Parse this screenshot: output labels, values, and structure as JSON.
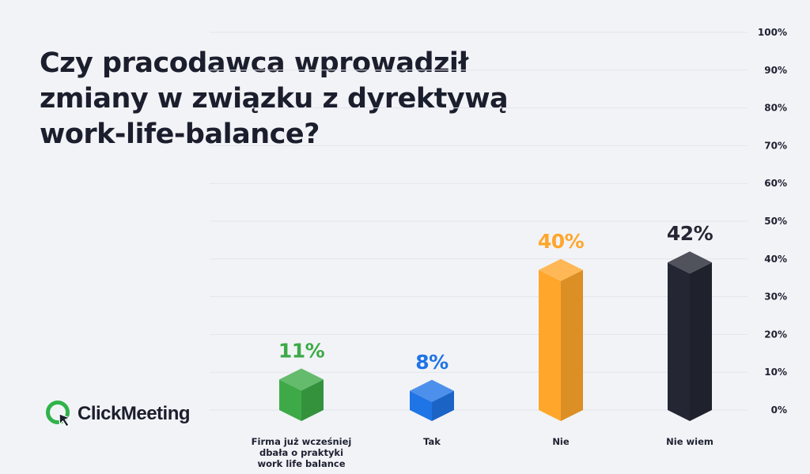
{
  "title_lines": [
    "Czy pracodawca wprowadził",
    "zmiany w związku z dyrektywą",
    "work-life-balance?"
  ],
  "logo": {
    "text": "ClickMeeting",
    "icon": "clickmeeting-logo-icon"
  },
  "chart_data": {
    "type": "bar",
    "categories": [
      [
        "Firma już wcześniej",
        "dbała o praktyki",
        "work life balance"
      ],
      [
        "Tak"
      ],
      [
        "Nie"
      ],
      [
        "Nie wiem"
      ]
    ],
    "values": [
      11,
      8,
      40,
      42
    ],
    "value_labels": [
      "11%",
      "8%",
      "40%",
      "42%"
    ],
    "colors": [
      "#3daa47",
      "#1f74e6",
      "#ffa62b",
      "#242733"
    ],
    "y_ticks": [
      "0%",
      "10%",
      "20%",
      "30%",
      "40%",
      "50%",
      "60%",
      "70%",
      "80%",
      "90%",
      "100%"
    ],
    "ylim": [
      0,
      100
    ],
    "y_axis_side": "right",
    "grid": true
  }
}
